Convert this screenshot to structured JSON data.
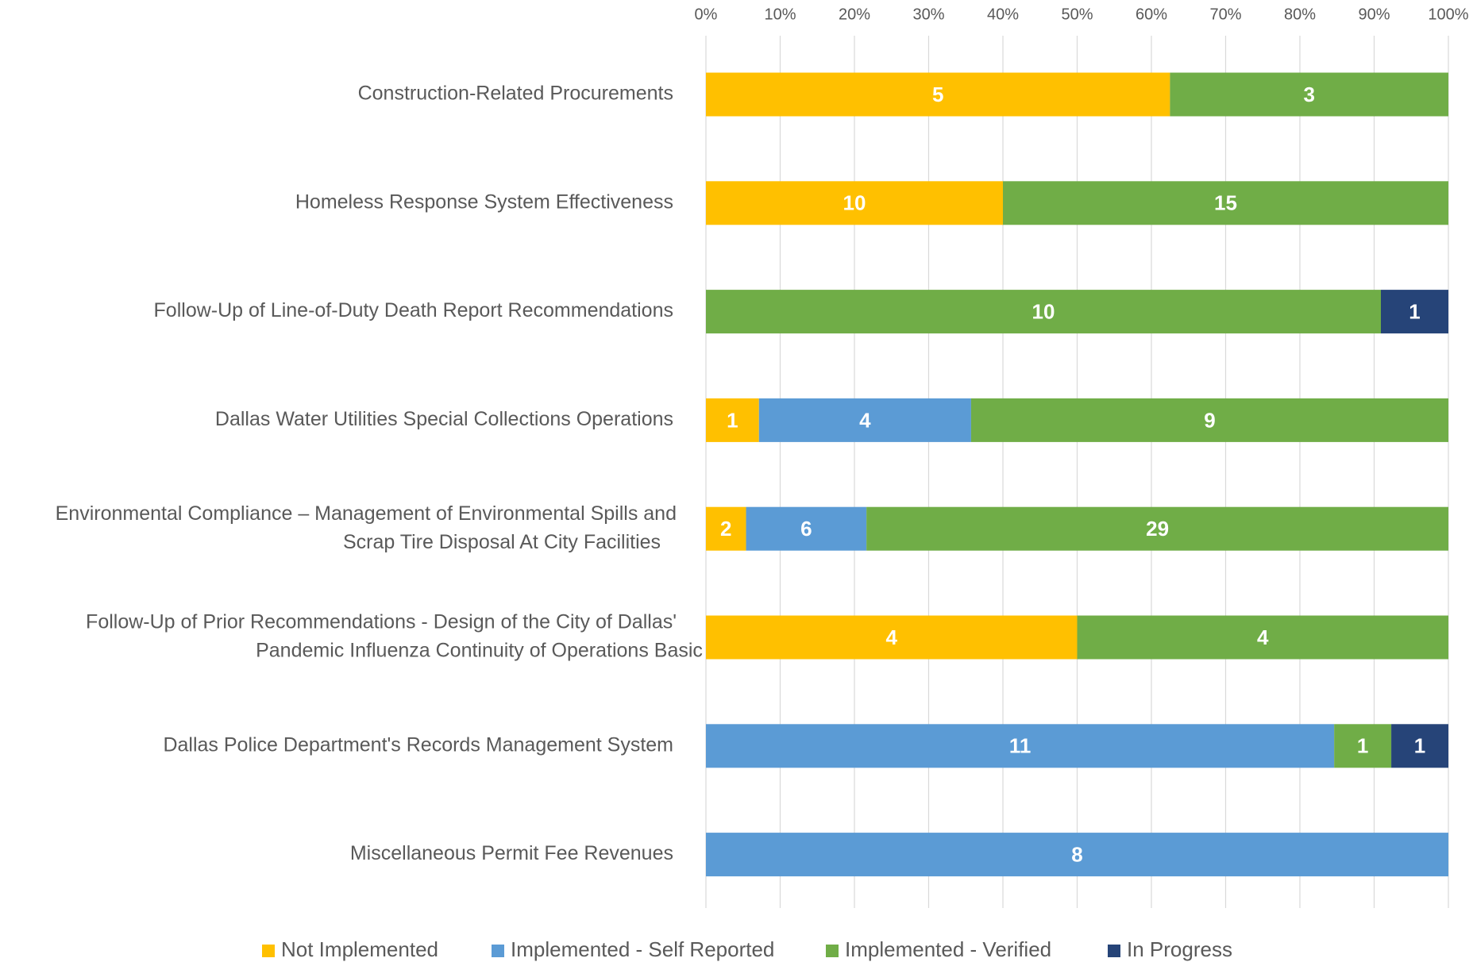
{
  "chart_data": {
    "type": "bar",
    "orientation": "horizontal",
    "stacking": "percent",
    "categories": [
      "Construction-Related Procurements",
      "Homeless Response System Effectiveness",
      "Follow-Up of Line-of-Duty Death Report Recommendations",
      "Dallas Water Utilities Special Collections Operations",
      [
        "Environmental Compliance – Management of Environmental Spills and",
        "Scrap Tire Disposal At City Facilities"
      ],
      [
        "Follow-Up of Prior Recommendations - Design of the City of Dallas'",
        "Pandemic Influenza Continuity of Operations Basic Plan"
      ],
      "Dallas Police Department's Records Management System",
      "Miscellaneous Permit Fee Revenues"
    ],
    "series": [
      {
        "name": "Not Implemented",
        "color": "#FFC000",
        "values": [
          5,
          10,
          null,
          1,
          2,
          4,
          null,
          null
        ]
      },
      {
        "name": "Implemented - Self Reported",
        "color": "#5B9BD5",
        "values": [
          null,
          null,
          null,
          4,
          6,
          null,
          11,
          8
        ]
      },
      {
        "name": "Implemented - Verified",
        "color": "#70AD47",
        "values": [
          3,
          15,
          10,
          9,
          29,
          4,
          1,
          null
        ]
      },
      {
        "name": "In Progress",
        "color": "#264478",
        "values": [
          null,
          null,
          1,
          null,
          null,
          null,
          1,
          null
        ]
      }
    ],
    "xlim": [
      0,
      100
    ],
    "xticks": [
      {
        "value": 0,
        "label": "0%"
      },
      {
        "value": 10,
        "label": "10%"
      },
      {
        "value": 20,
        "label": "20%"
      },
      {
        "value": 30,
        "label": "30%"
      },
      {
        "value": 40,
        "label": "40%"
      },
      {
        "value": 50,
        "label": "50%"
      },
      {
        "value": 60,
        "label": "60%"
      },
      {
        "value": 70,
        "label": "70%"
      },
      {
        "value": 80,
        "label": "80%"
      },
      {
        "value": 90,
        "label": "90%"
      },
      {
        "value": 100,
        "label": "100%"
      }
    ],
    "grid": true,
    "legend": "bottom"
  }
}
